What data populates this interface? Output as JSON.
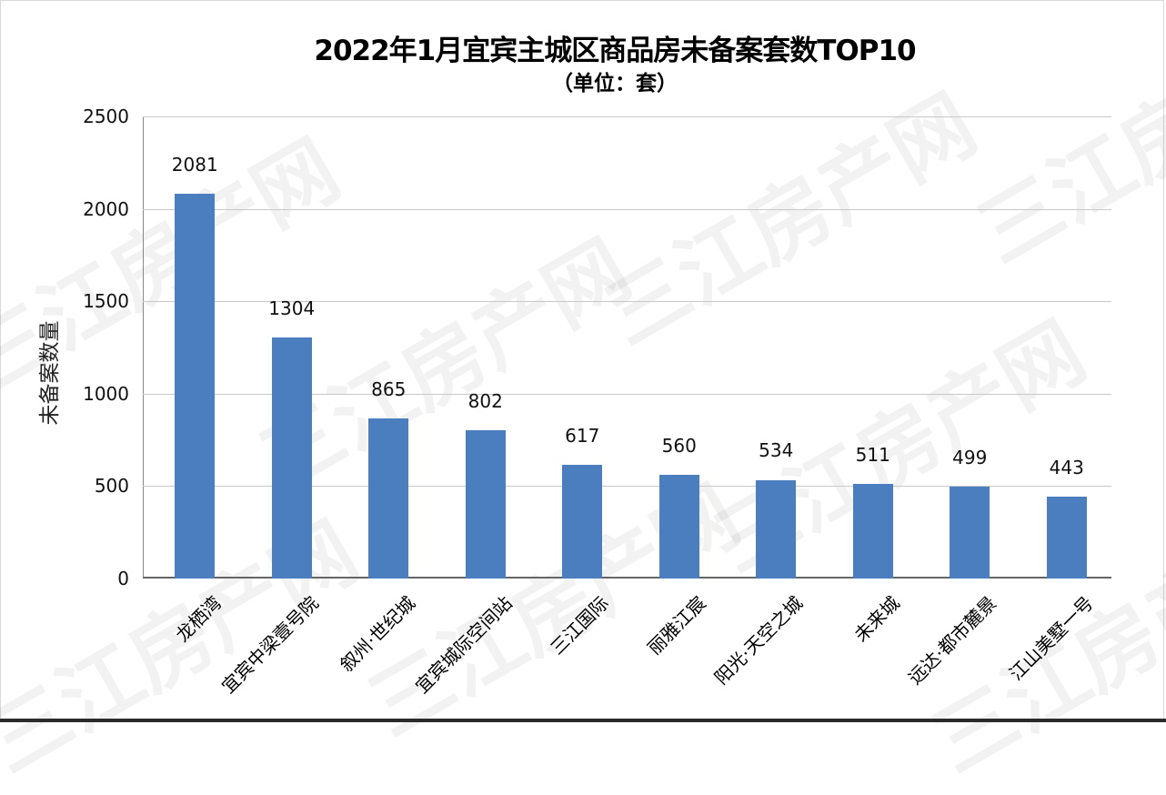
{
  "chart_data": {
    "type": "bar",
    "title": "2022年1月宜宾主城区商品房未备案套数TOP10",
    "subtitle": "（单位：套）",
    "xlabel": "",
    "ylabel": "未备案数量",
    "ylim": [
      0,
      2500
    ],
    "yticks": [
      "0",
      "500",
      "1000",
      "1500",
      "2000",
      "2500"
    ],
    "grid": true,
    "legend": null,
    "categories": [
      "龙栖湾",
      "宜宾中梁壹号院",
      "叙州·世纪城",
      "宜宾城际空间站",
      "三江国际",
      "丽雅江宸",
      "阳光·天空之城",
      "未来城",
      "远达·都市麓景",
      "江山美墅一号"
    ],
    "values": [
      2081,
      1304,
      865,
      802,
      617,
      560,
      534,
      511,
      499,
      443
    ],
    "bar_color": "#4a7ebf"
  },
  "watermark": "三江房产网"
}
